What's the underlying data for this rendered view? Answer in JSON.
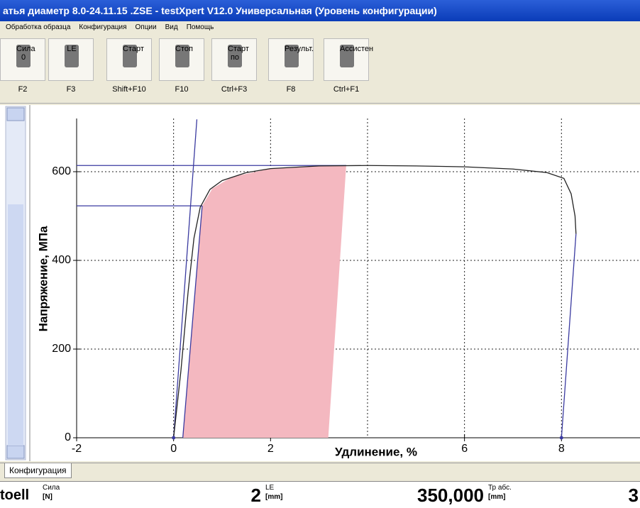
{
  "window": {
    "title": "атья диаметр 8.0-24.11.15 .ZSE - testXpert V12.0 Универсальная (Уровень конфигурации)"
  },
  "menu": [
    "Обработка образца",
    "Конфигурация",
    "Опции",
    "Вид",
    "Помощь"
  ],
  "toolbar": [
    {
      "label": "Сила 0",
      "key": "F2"
    },
    {
      "label": "LE",
      "key": "F3"
    },
    {
      "label": "Старт",
      "key": "Shift+F10"
    },
    {
      "label": "Стоп",
      "key": "F10"
    },
    {
      "label": "Старт по",
      "key": "Ctrl+F3"
    },
    {
      "label": "Результ.",
      "key": "F8"
    },
    {
      "label": "Ассистен",
      "key": "Ctrl+F1"
    }
  ],
  "chart_data": {
    "type": "line",
    "xlabel": "Удлинение, %",
    "ylabel": "Напряжение, МПа",
    "xlim": [
      -2,
      9.62
    ],
    "ylim": [
      0,
      720
    ],
    "xticks": [
      -2,
      0,
      2,
      6,
      8
    ],
    "yticks": [
      0,
      200,
      400,
      600
    ],
    "xgrid": [
      0,
      2,
      4,
      6,
      8
    ],
    "ygrid": [
      200,
      400,
      600
    ],
    "series": [
      {
        "style": "area",
        "color": "#f4b8c0",
        "x": [
          0.19,
          0.59,
          0.8,
          1.2,
          2,
          3,
          3.56,
          3.19
        ],
        "y": [
          0,
          523,
          562,
          588,
          607,
          613,
          614,
          0
        ]
      },
      {
        "style": "line",
        "color": "#3a3aa0",
        "x": [
          0,
          0.48
        ],
        "y": [
          0,
          718
        ]
      },
      {
        "style": "line",
        "color": "#3a3aa0",
        "x": [
          0.19,
          0.59
        ],
        "y": [
          0,
          523
        ]
      },
      {
        "style": "line",
        "color": "#3a3aa0",
        "x": [
          -2,
          3.56
        ],
        "y": [
          614,
          614
        ]
      },
      {
        "style": "line",
        "color": "#3a3aa0",
        "x": [
          -2,
          0.59
        ],
        "y": [
          523,
          523
        ]
      },
      {
        "style": "line",
        "color": "#222222",
        "x": [
          0,
          0.15,
          0.3,
          0.42,
          0.55,
          0.75,
          1,
          1.5,
          2,
          3,
          4,
          5,
          6,
          7,
          7.7,
          8.05,
          8.2,
          8.28,
          8.3
        ],
        "y": [
          0,
          150,
          330,
          450,
          520,
          560,
          580,
          598,
          607,
          613,
          614,
          613,
          611,
          606,
          598,
          585,
          550,
          500,
          460
        ]
      },
      {
        "style": "line",
        "color": "#3a3aa0",
        "x": [
          8.3,
          8
        ],
        "y": [
          460,
          0
        ]
      },
      {
        "style": "markers",
        "color": "#3a3aa0",
        "x": [
          0,
          8
        ],
        "y": [
          0,
          0
        ]
      }
    ]
  },
  "tab": "Конфигурация",
  "status": {
    "brand": "toell",
    "f1": {
      "name": "Сила",
      "unit": "[N]",
      "value": "2"
    },
    "f2": {
      "name": "LE",
      "unit": "[mm]",
      "value": "350,000"
    },
    "f3": {
      "name": "Тр абс.",
      "unit": "[mm]",
      "value": "3"
    }
  }
}
